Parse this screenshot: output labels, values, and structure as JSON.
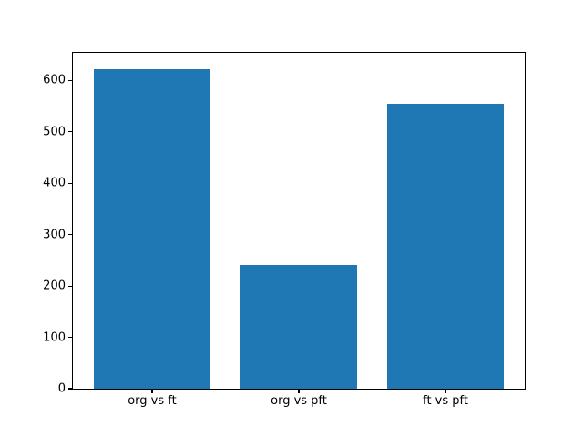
{
  "chart_data": {
    "type": "bar",
    "title": "",
    "xlabel": "",
    "ylabel": "",
    "categories": [
      "org vs ft",
      "org vs pft",
      "ft vs pft"
    ],
    "values": [
      623,
      241,
      555
    ],
    "yticks": [
      0,
      100,
      200,
      300,
      400,
      500,
      600
    ],
    "ylim": [
      0,
      654
    ],
    "xlim": [
      -0.54,
      2.54
    ],
    "bar_width": 0.8,
    "bar_color": "#1f77b4",
    "background_color": "#ffffff",
    "spine_color": "#000000",
    "grid": false,
    "legend": false
  }
}
